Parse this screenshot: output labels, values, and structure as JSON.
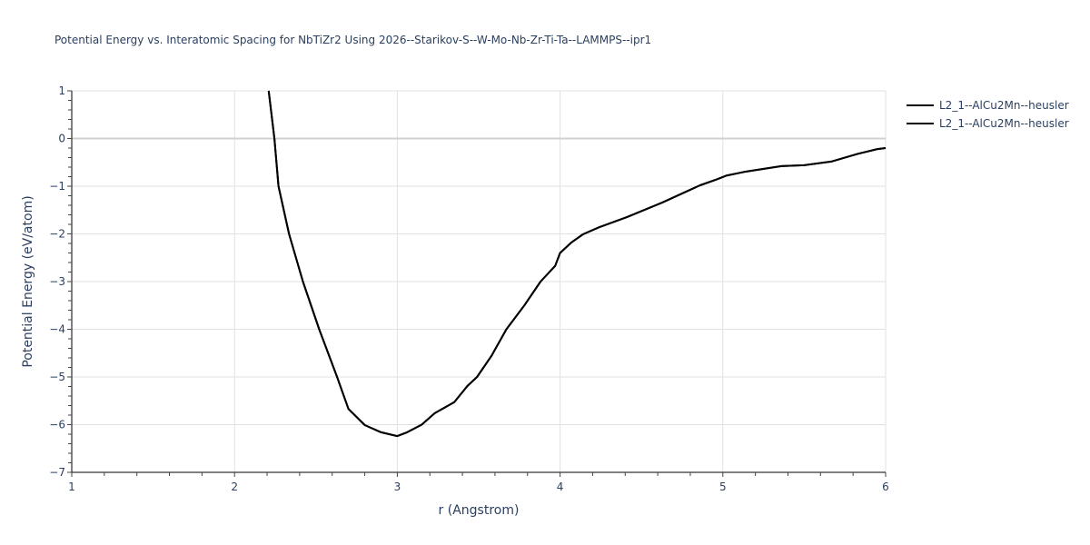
{
  "chart_data": {
    "type": "line",
    "title": "Potential Energy vs. Interatomic Spacing for NbTiZr2 Using 2026--Starikov-S--W-Mo-Nb-Zr-Ti-Ta--LAMMPS--ipr1",
    "xlabel": "r (Angstrom)",
    "ylabel": "Potential Energy (eV/atom)",
    "xlim": [
      1,
      6
    ],
    "ylim": [
      -7,
      1
    ],
    "x_ticks": [
      1,
      2,
      3,
      4,
      5,
      6
    ],
    "y_ticks": [
      1,
      0,
      -1,
      -2,
      -3,
      -4,
      -5,
      -6,
      -7
    ],
    "grid": true,
    "legend_position": "top-right outside",
    "series": [
      {
        "name": "L2_1--AlCu2Mn--heusler",
        "color": "#000000",
        "x": [
          2.21,
          2.245,
          2.27,
          2.335,
          2.42,
          2.52,
          2.63,
          2.7,
          2.8,
          2.9,
          3.0,
          3.06,
          3.15,
          3.23,
          3.35,
          3.43,
          3.49,
          3.58,
          3.67,
          3.78,
          3.88,
          3.97,
          4.0,
          4.07,
          4.14,
          4.24,
          4.41,
          4.63,
          4.86,
          4.96,
          5.02,
          5.13,
          5.36,
          5.5,
          5.67,
          5.83,
          5.95,
          6.0
        ],
        "values": [
          1.0,
          0.0,
          -1.0,
          -2.0,
          -3.0,
          -4.0,
          -5.0,
          -5.67,
          -6.01,
          -6.16,
          -6.24,
          -6.16,
          -6.0,
          -5.76,
          -5.53,
          -5.19,
          -5.0,
          -4.55,
          -4.0,
          -3.5,
          -3.0,
          -2.67,
          -2.4,
          -2.18,
          -2.01,
          -1.86,
          -1.65,
          -1.34,
          -0.98,
          -0.86,
          -0.78,
          -0.7,
          -0.58,
          -0.56,
          -0.48,
          -0.32,
          -0.22,
          -0.2
        ]
      },
      {
        "name": "L2_1--AlCu2Mn--heusler",
        "color": "#000000",
        "x": [
          2.21,
          2.245,
          2.27,
          2.335,
          2.42,
          2.52,
          2.63,
          2.7,
          2.8,
          2.9,
          3.0,
          3.06,
          3.15,
          3.23,
          3.35,
          3.43,
          3.49,
          3.58,
          3.67,
          3.78,
          3.88,
          3.97,
          4.0,
          4.07,
          4.14,
          4.24,
          4.41,
          4.63,
          4.86,
          4.96,
          5.02,
          5.13,
          5.36,
          5.5,
          5.67,
          5.83,
          5.95,
          6.0
        ],
        "values": [
          1.0,
          0.0,
          -1.0,
          -2.0,
          -3.0,
          -4.0,
          -5.0,
          -5.67,
          -6.01,
          -6.16,
          -6.24,
          -6.16,
          -6.0,
          -5.76,
          -5.53,
          -5.19,
          -5.0,
          -4.55,
          -4.0,
          -3.5,
          -3.0,
          -2.67,
          -2.4,
          -2.18,
          -2.01,
          -1.86,
          -1.65,
          -1.34,
          -0.98,
          -0.86,
          -0.78,
          -0.7,
          -0.58,
          -0.56,
          -0.48,
          -0.32,
          -0.22,
          -0.2
        ]
      }
    ]
  },
  "legend": {
    "items": [
      {
        "label": "L2_1--AlCu2Mn--heusler"
      },
      {
        "label": "L2_1--AlCu2Mn--heusler"
      }
    ]
  }
}
